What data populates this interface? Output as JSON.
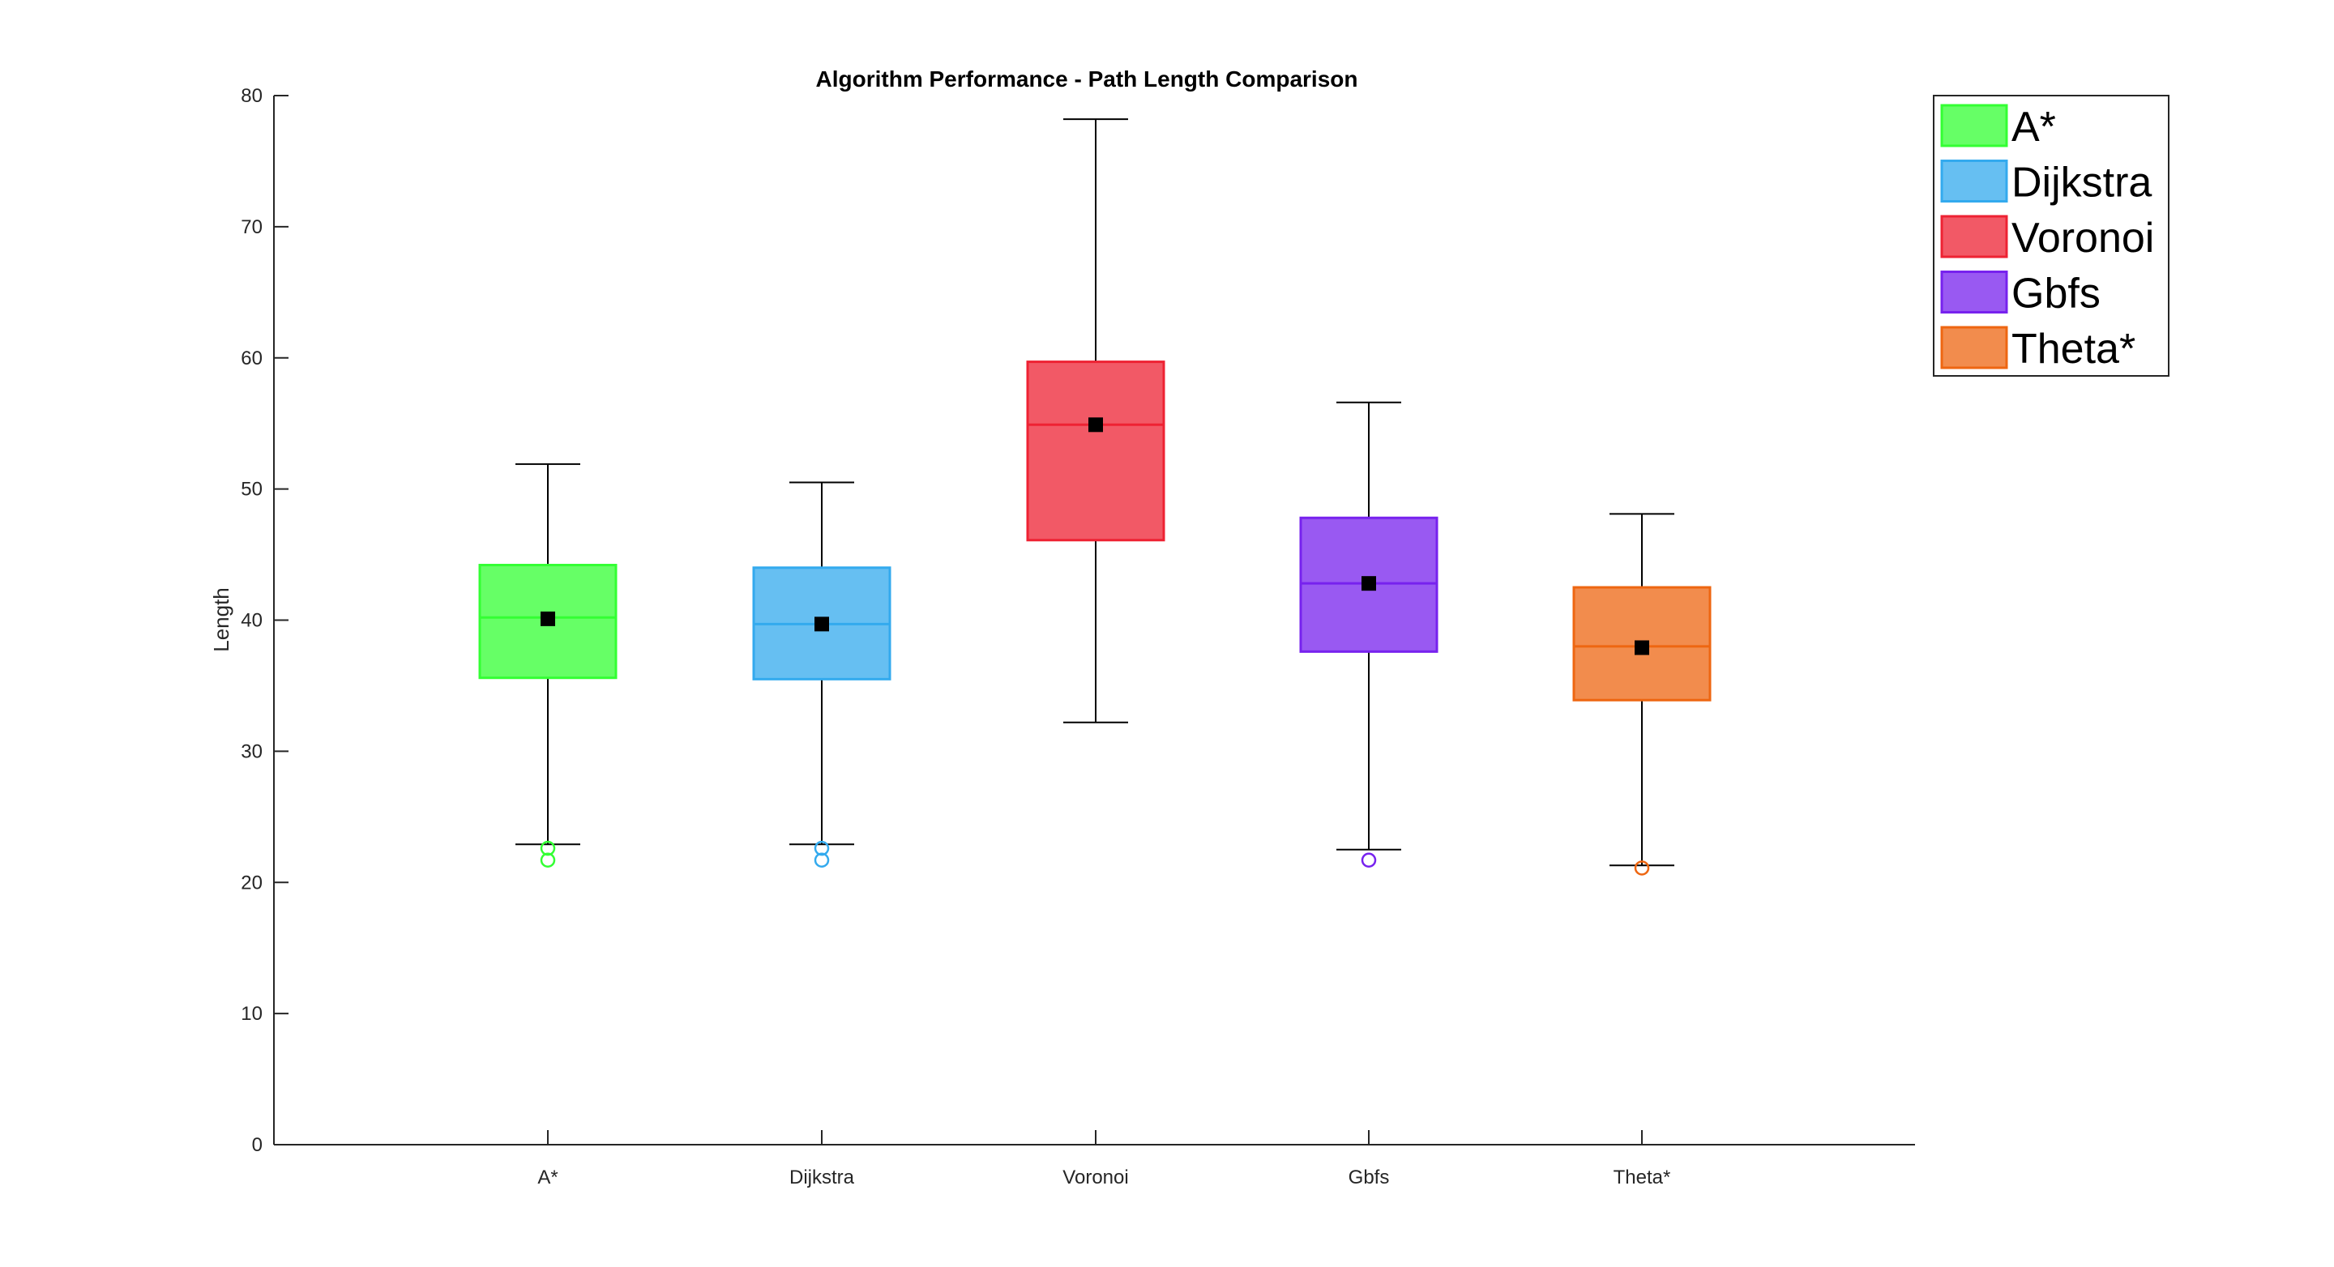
{
  "chart_data": {
    "type": "boxplot",
    "title": "Algorithm Performance - Path Length Comparison",
    "xlabel": "",
    "ylabel": "Length",
    "ylim": [
      0,
      80
    ],
    "yticks": [
      0,
      10,
      20,
      30,
      40,
      50,
      60,
      70,
      80
    ],
    "categories": [
      "A*",
      "Dijkstra",
      "Voronoi",
      "Gbfs",
      "Theta*"
    ],
    "series": [
      {
        "name": "A*",
        "color": "#33ff33",
        "whisker_low": 22.9,
        "q1": 35.6,
        "median": 40.2,
        "q3": 44.2,
        "whisker_high": 51.9,
        "mean": 40.1,
        "outliers": [
          22.6,
          21.7
        ]
      },
      {
        "name": "Dijkstra",
        "color": "#33aaee",
        "whisker_low": 22.9,
        "q1": 35.5,
        "median": 39.7,
        "q3": 44.0,
        "whisker_high": 50.5,
        "mean": 39.7,
        "outliers": [
          22.6,
          21.7
        ]
      },
      {
        "name": "Voronoi",
        "color": "#ee2233",
        "whisker_low": 32.2,
        "q1": 46.1,
        "median": 54.9,
        "q3": 59.7,
        "whisker_high": 78.2,
        "mean": 54.9,
        "outliers": []
      },
      {
        "name": "Gbfs",
        "color": "#7722ee",
        "whisker_low": 22.5,
        "q1": 37.6,
        "median": 42.8,
        "q3": 47.8,
        "whisker_high": 56.6,
        "mean": 42.8,
        "outliers": [
          21.7
        ]
      },
      {
        "name": "Theta*",
        "color": "#ee6611",
        "whisker_low": 21.3,
        "q1": 33.9,
        "median": 38.0,
        "q3": 42.5,
        "whisker_high": 48.1,
        "mean": 37.9,
        "outliers": [
          21.1
        ]
      }
    ],
    "legend": {
      "position": "top-right"
    },
    "grid": false
  }
}
